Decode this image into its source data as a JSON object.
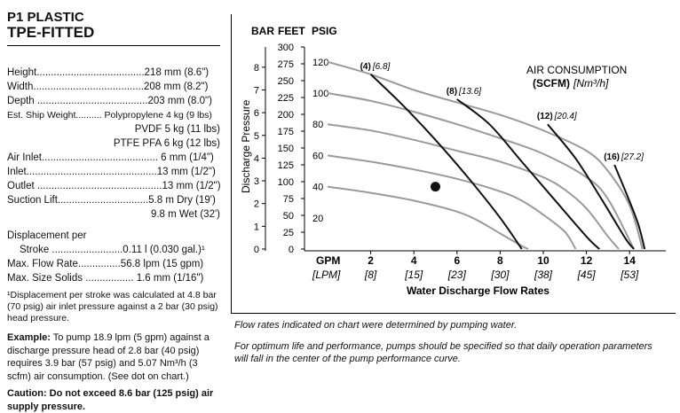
{
  "spec": {
    "title1": "P1 PLASTIC",
    "title2": "TPE-FITTED",
    "height": "Height......................................218 mm (8.6\")",
    "width": "Width.......................................208 mm (8.2\")",
    "depth": "Depth .......................................203 mm (8.0\")",
    "ship1": "Est. Ship Weight.......... Polypropylene 4 kg (9 lbs)",
    "ship2": "PVDF 5 kg (11 lbs)",
    "ship3": "PTFE PFA 6 kg (12 lbs)",
    "air_inlet": "Air Inlet......................................... 6 mm (1/4\")",
    "inlet": "Inlet..............................................13 mm (1/2\")",
    "outlet": "Outlet ............................................13 mm (1/2\")",
    "suction1": "Suction Lift................................5.8 m Dry (19')",
    "suction2": "9.8 m Wet (32')",
    "disp1": "Displacement per",
    "disp2": "Stroke .........................0.11 l (0.030 gal.)¹",
    "maxflow": "Max. Flow Rate...............56.8 lpm (15 gpm)",
    "maxsolids": "Max. Size Solids ................. 1.6 mm (1/16\")",
    "footnote": "¹Displacement per stroke was calculated at 4.8 bar (70 psig) air inlet pressure against a 2 bar (30 psig) head pressure.",
    "example_label": "Example:",
    "example_text": " To pump 18.9 lpm (5 gpm) against a discharge pressure head of 2.8 bar (40 psig) requires 3.9 bar (57 psig) and 5.07 Nm³/h (3 scfm) air consumption. (See dot on chart.)",
    "caution": "Caution: Do not exceed 8.6 bar (125 psig) air supply pressure."
  },
  "footnotes": {
    "note1": "Flow rates indicated on chart were determined by pumping water.",
    "note2": "For optimum life and performance, pumps should be specified so that daily operation parameters will fall in the center of the pump performance curve."
  },
  "chart_data": {
    "type": "line",
    "header_bar": "BAR",
    "header_feet": "FEET",
    "header_psig": "PSIG",
    "ylabel": "Discharge Pressure",
    "xlabel": "Water Discharge Flow Rates",
    "x_gpm_label": "GPM",
    "x_lpm_label": "[LPM]",
    "legend_title": "AIR CONSUMPTION",
    "legend_units_bold": "(SCFM)",
    "legend_units_italic": "[Nm³/h]",
    "bar_ticks": [
      "0",
      "1",
      "2",
      "3",
      "4",
      "5",
      "6",
      "7",
      "8"
    ],
    "feet_ticks": [
      "0",
      "25",
      "50",
      "75",
      "100",
      "125",
      "150",
      "175",
      "200",
      "225",
      "250",
      "275",
      "300"
    ],
    "psig_ticks": [
      "20",
      "40",
      "60",
      "80",
      "100",
      "120"
    ],
    "gpm_ticks": [
      "2",
      "4",
      "6",
      "8",
      "10",
      "12",
      "14"
    ],
    "lpm_ticks": [
      "[8]",
      "[15]",
      "[23]",
      "[30]",
      "[38]",
      "[45]",
      "[53]"
    ],
    "xlim": [
      0,
      15.3
    ],
    "ylim_psig": [
      0,
      130
    ],
    "air_pressure_curves": [
      {
        "psig": 120,
        "points": [
          [
            0,
            120
          ],
          [
            2,
            112
          ],
          [
            4,
            102
          ],
          [
            6,
            94
          ],
          [
            8,
            86
          ],
          [
            10,
            76
          ],
          [
            12,
            63
          ],
          [
            13,
            50
          ],
          [
            14,
            28
          ],
          [
            14.6,
            0
          ]
        ]
      },
      {
        "psig": 100,
        "points": [
          [
            0,
            100
          ],
          [
            2,
            95
          ],
          [
            4,
            88
          ],
          [
            6,
            80
          ],
          [
            8,
            71
          ],
          [
            10,
            61
          ],
          [
            12,
            46
          ],
          [
            13,
            32
          ],
          [
            14.2,
            0
          ]
        ]
      },
      {
        "psig": 80,
        "points": [
          [
            0,
            80
          ],
          [
            2,
            76
          ],
          [
            4,
            70
          ],
          [
            6,
            63
          ],
          [
            8,
            56
          ],
          [
            10,
            46
          ],
          [
            11,
            38
          ],
          [
            12,
            26
          ],
          [
            13,
            8
          ],
          [
            13.5,
            0
          ]
        ]
      },
      {
        "psig": 60,
        "points": [
          [
            0,
            60
          ],
          [
            2,
            56
          ],
          [
            4,
            51
          ],
          [
            6,
            45
          ],
          [
            8,
            37
          ],
          [
            9,
            31
          ],
          [
            10,
            22
          ],
          [
            11,
            11
          ],
          [
            11.5,
            0
          ]
        ]
      },
      {
        "psig": 40,
        "points": [
          [
            0,
            40
          ],
          [
            2,
            36
          ],
          [
            4,
            31
          ],
          [
            6,
            24
          ],
          [
            7,
            18
          ],
          [
            8,
            10
          ],
          [
            9,
            2
          ],
          [
            9.3,
            0
          ]
        ]
      }
    ],
    "air_consumption_curves": [
      {
        "scfm": "(4)",
        "nm3h": "[6.8]",
        "points": [
          [
            2,
            112
          ],
          [
            3.5,
            92
          ],
          [
            5,
            70
          ],
          [
            6.5,
            46
          ],
          [
            8,
            20
          ],
          [
            9,
            0
          ]
        ]
      },
      {
        "scfm": "(8)",
        "nm3h": "[13.6]",
        "points": [
          [
            6,
            96
          ],
          [
            7.5,
            80
          ],
          [
            9,
            56
          ],
          [
            10.5,
            32
          ],
          [
            12,
            8
          ],
          [
            12.6,
            0
          ]
        ]
      },
      {
        "scfm": "(12)",
        "nm3h": "[20.4]",
        "points": [
          [
            10.2,
            80
          ],
          [
            11.5,
            58
          ],
          [
            12.7,
            32
          ],
          [
            13.8,
            7
          ],
          [
            14.2,
            0
          ]
        ]
      },
      {
        "scfm": "(16)",
        "nm3h": "[27.2]",
        "points": [
          [
            13.3,
            54
          ],
          [
            13.9,
            34
          ],
          [
            14.4,
            16
          ],
          [
            14.7,
            0
          ]
        ]
      }
    ],
    "example_point": {
      "gpm": 5,
      "psig": 40
    }
  }
}
